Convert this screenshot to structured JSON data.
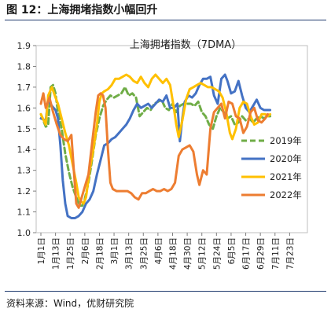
{
  "figure_title": "图 12：上海拥堵指数小幅回升",
  "source": "资料来源：Wind，优财研究院",
  "colors": {
    "2019": "#70ad47",
    "2020": "#4472c4",
    "2021": "#ffc000",
    "2022": "#ed7d31",
    "rule": "#1f3a6e"
  },
  "chart_data": {
    "type": "line",
    "title": "上海拥堵指数（7DMA）",
    "xlabel": "",
    "ylabel": "",
    "ylim": [
      1.0,
      1.9
    ],
    "yticks": [
      "1.0",
      "1.1",
      "1.2",
      "1.3",
      "1.4",
      "1.5",
      "1.6",
      "1.7",
      "1.8",
      "1.9"
    ],
    "xticks": [
      "1月1日",
      "1月13日",
      "1月25日",
      "2月6日",
      "2月18日",
      "3月1日",
      "3月13日",
      "3月25日",
      "4月6日",
      "4月18日",
      "4月30日",
      "5月12日",
      "5月24日",
      "6月5日",
      "6月17日",
      "6月29日",
      "7月11日",
      "7月23日"
    ],
    "x_days_per_tick": 12,
    "grid": false,
    "legend_position": "right",
    "series": [
      {
        "name": "2019年",
        "style": "dashed",
        "points": [
          [
            0,
            1.57
          ],
          [
            4,
            1.51
          ],
          [
            6,
            1.52
          ],
          [
            8,
            1.7
          ],
          [
            10,
            1.71
          ],
          [
            12,
            1.67
          ],
          [
            14,
            1.58
          ],
          [
            17,
            1.5
          ],
          [
            20,
            1.38
          ],
          [
            23,
            1.29
          ],
          [
            26,
            1.22
          ],
          [
            29,
            1.17
          ],
          [
            32,
            1.13
          ],
          [
            34,
            1.13
          ],
          [
            36,
            1.16
          ],
          [
            39,
            1.24
          ],
          [
            42,
            1.35
          ],
          [
            45,
            1.47
          ],
          [
            48,
            1.55
          ],
          [
            51,
            1.61
          ],
          [
            54,
            1.64
          ],
          [
            57,
            1.66
          ],
          [
            60,
            1.65
          ],
          [
            63,
            1.66
          ],
          [
            66,
            1.67
          ],
          [
            69,
            1.7
          ],
          [
            72,
            1.66
          ],
          [
            75,
            1.67
          ],
          [
            78,
            1.65
          ],
          [
            81,
            1.56
          ],
          [
            84,
            1.58
          ],
          [
            87,
            1.6
          ],
          [
            90,
            1.59
          ],
          [
            93,
            1.62
          ],
          [
            96,
            1.63
          ],
          [
            99,
            1.64
          ],
          [
            102,
            1.6
          ],
          [
            105,
            1.59
          ],
          [
            108,
            1.62
          ],
          [
            111,
            1.58
          ],
          [
            114,
            1.61
          ],
          [
            117,
            1.62
          ],
          [
            120,
            1.62
          ],
          [
            123,
            1.62
          ],
          [
            126,
            1.61
          ],
          [
            129,
            1.63
          ],
          [
            132,
            1.58
          ],
          [
            135,
            1.56
          ],
          [
            138,
            1.52
          ],
          [
            141,
            1.5
          ],
          [
            144,
            1.56
          ],
          [
            147,
            1.6
          ],
          [
            150,
            1.58
          ],
          [
            153,
            1.55
          ],
          [
            156,
            1.56
          ],
          [
            159,
            1.52
          ],
          [
            162,
            1.53
          ],
          [
            165,
            1.56
          ],
          [
            168,
            1.54
          ],
          [
            171,
            1.55
          ],
          [
            174,
            1.53
          ],
          [
            177,
            1.55
          ],
          [
            180,
            1.56
          ],
          [
            183,
            1.55
          ],
          [
            186,
            1.56
          ],
          [
            188,
            1.56
          ]
        ]
      },
      {
        "name": "2020年",
        "style": "solid",
        "points": [
          [
            0,
            1.55
          ],
          [
            4,
            1.54
          ],
          [
            6,
            1.64
          ],
          [
            9,
            1.61
          ],
          [
            12,
            1.59
          ],
          [
            14,
            1.55
          ],
          [
            16,
            1.42
          ],
          [
            18,
            1.25
          ],
          [
            20,
            1.14
          ],
          [
            22,
            1.08
          ],
          [
            25,
            1.07
          ],
          [
            28,
            1.07
          ],
          [
            31,
            1.08
          ],
          [
            34,
            1.1
          ],
          [
            37,
            1.14
          ],
          [
            40,
            1.16
          ],
          [
            43,
            1.2
          ],
          [
            46,
            1.28
          ],
          [
            49,
            1.35
          ],
          [
            52,
            1.42
          ],
          [
            55,
            1.43
          ],
          [
            58,
            1.45
          ],
          [
            61,
            1.46
          ],
          [
            64,
            1.48
          ],
          [
            67,
            1.5
          ],
          [
            70,
            1.52
          ],
          [
            73,
            1.55
          ],
          [
            76,
            1.59
          ],
          [
            79,
            1.62
          ],
          [
            82,
            1.6
          ],
          [
            85,
            1.61
          ],
          [
            88,
            1.62
          ],
          [
            91,
            1.6
          ],
          [
            94,
            1.62
          ],
          [
            97,
            1.64
          ],
          [
            100,
            1.63
          ],
          [
            103,
            1.66
          ],
          [
            106,
            1.6
          ],
          [
            109,
            1.6
          ],
          [
            112,
            1.62
          ],
          [
            114,
            1.44
          ],
          [
            116,
            1.55
          ],
          [
            118,
            1.63
          ],
          [
            121,
            1.66
          ],
          [
            124,
            1.65
          ],
          [
            127,
            1.67
          ],
          [
            130,
            1.71
          ],
          [
            133,
            1.74
          ],
          [
            136,
            1.74
          ],
          [
            139,
            1.75
          ],
          [
            142,
            1.66
          ],
          [
            145,
            1.62
          ],
          [
            148,
            1.74
          ],
          [
            151,
            1.76
          ],
          [
            153,
            1.73
          ],
          [
            156,
            1.67
          ],
          [
            159,
            1.68
          ],
          [
            162,
            1.73
          ],
          [
            165,
            1.66
          ],
          [
            168,
            1.6
          ],
          [
            171,
            1.58
          ],
          [
            174,
            1.61
          ],
          [
            177,
            1.64
          ],
          [
            180,
            1.6
          ],
          [
            183,
            1.59
          ],
          [
            186,
            1.59
          ],
          [
            188,
            1.59
          ]
        ]
      },
      {
        "name": "2021年",
        "style": "solid",
        "points": [
          [
            0,
            1.57
          ],
          [
            4,
            1.52
          ],
          [
            6,
            1.66
          ],
          [
            9,
            1.7
          ],
          [
            12,
            1.65
          ],
          [
            14,
            1.62
          ],
          [
            17,
            1.55
          ],
          [
            20,
            1.48
          ],
          [
            23,
            1.42
          ],
          [
            26,
            1.33
          ],
          [
            29,
            1.24
          ],
          [
            31,
            1.17
          ],
          [
            33,
            1.15
          ],
          [
            35,
            1.14
          ],
          [
            37,
            1.17
          ],
          [
            40,
            1.3
          ],
          [
            43,
            1.4
          ],
          [
            46,
            1.52
          ],
          [
            48,
            1.63
          ],
          [
            50,
            1.67
          ],
          [
            52,
            1.68
          ],
          [
            55,
            1.69
          ],
          [
            58,
            1.71
          ],
          [
            61,
            1.74
          ],
          [
            64,
            1.74
          ],
          [
            67,
            1.75
          ],
          [
            70,
            1.76
          ],
          [
            73,
            1.75
          ],
          [
            76,
            1.73
          ],
          [
            79,
            1.72
          ],
          [
            82,
            1.75
          ],
          [
            85,
            1.72
          ],
          [
            88,
            1.7
          ],
          [
            91,
            1.74
          ],
          [
            94,
            1.76
          ],
          [
            97,
            1.74
          ],
          [
            100,
            1.72
          ],
          [
            103,
            1.74
          ],
          [
            106,
            1.71
          ],
          [
            109,
            1.6
          ],
          [
            111,
            1.52
          ],
          [
            113,
            1.46
          ],
          [
            116,
            1.54
          ],
          [
            119,
            1.64
          ],
          [
            122,
            1.69
          ],
          [
            125,
            1.7
          ],
          [
            128,
            1.71
          ],
          [
            131,
            1.72
          ],
          [
            134,
            1.71
          ],
          [
            137,
            1.7
          ],
          [
            140,
            1.7
          ],
          [
            143,
            1.69
          ],
          [
            146,
            1.68
          ],
          [
            149,
            1.65
          ],
          [
            152,
            1.58
          ],
          [
            155,
            1.48
          ],
          [
            157,
            1.45
          ],
          [
            160,
            1.5
          ],
          [
            163,
            1.6
          ],
          [
            166,
            1.63
          ],
          [
            169,
            1.62
          ],
          [
            172,
            1.56
          ],
          [
            175,
            1.52
          ],
          [
            178,
            1.53
          ],
          [
            181,
            1.57
          ],
          [
            184,
            1.57
          ],
          [
            186,
            1.56
          ],
          [
            188,
            1.57
          ]
        ]
      },
      {
        "name": "2022年",
        "style": "solid",
        "points": [
          [
            0,
            1.62
          ],
          [
            2,
            1.67
          ],
          [
            4,
            1.6
          ],
          [
            7,
            1.65
          ],
          [
            10,
            1.58
          ],
          [
            13,
            1.52
          ],
          [
            16,
            1.47
          ],
          [
            19,
            1.45
          ],
          [
            22,
            1.44
          ],
          [
            25,
            1.47
          ],
          [
            27,
            1.3
          ],
          [
            29,
            1.14
          ],
          [
            31,
            1.12
          ],
          [
            33,
            1.16
          ],
          [
            36,
            1.22
          ],
          [
            39,
            1.28
          ],
          [
            42,
            1.43
          ],
          [
            45,
            1.58
          ],
          [
            47,
            1.66
          ],
          [
            49,
            1.67
          ],
          [
            51,
            1.66
          ],
          [
            53,
            1.6
          ],
          [
            55,
            1.4
          ],
          [
            57,
            1.24
          ],
          [
            59,
            1.21
          ],
          [
            62,
            1.2
          ],
          [
            65,
            1.2
          ],
          [
            68,
            1.2
          ],
          [
            71,
            1.2
          ],
          [
            74,
            1.19
          ],
          [
            77,
            1.17
          ],
          [
            80,
            1.16
          ],
          [
            83,
            1.19
          ],
          [
            86,
            1.19
          ],
          [
            89,
            1.2
          ],
          [
            92,
            1.21
          ],
          [
            95,
            1.2
          ],
          [
            98,
            1.2
          ],
          [
            101,
            1.21
          ],
          [
            104,
            1.2
          ],
          [
            107,
            1.21
          ],
          [
            110,
            1.24
          ],
          [
            113,
            1.37
          ],
          [
            116,
            1.4
          ],
          [
            119,
            1.41
          ],
          [
            122,
            1.42
          ],
          [
            125,
            1.39
          ],
          [
            128,
            1.28
          ],
          [
            130,
            1.23
          ],
          [
            133,
            1.3
          ],
          [
            136,
            1.28
          ],
          [
            139,
            1.5
          ],
          [
            142,
            1.58
          ],
          [
            145,
            1.6
          ],
          [
            148,
            1.62
          ],
          [
            151,
            1.55
          ],
          [
            154,
            1.63
          ],
          [
            157,
            1.62
          ],
          [
            160,
            1.56
          ],
          [
            163,
            1.55
          ],
          [
            166,
            1.48
          ],
          [
            169,
            1.51
          ],
          [
            172,
            1.58
          ],
          [
            175,
            1.6
          ],
          [
            178,
            1.54
          ],
          [
            181,
            1.53
          ],
          [
            184,
            1.55
          ],
          [
            186,
            1.57
          ]
        ]
      }
    ]
  }
}
